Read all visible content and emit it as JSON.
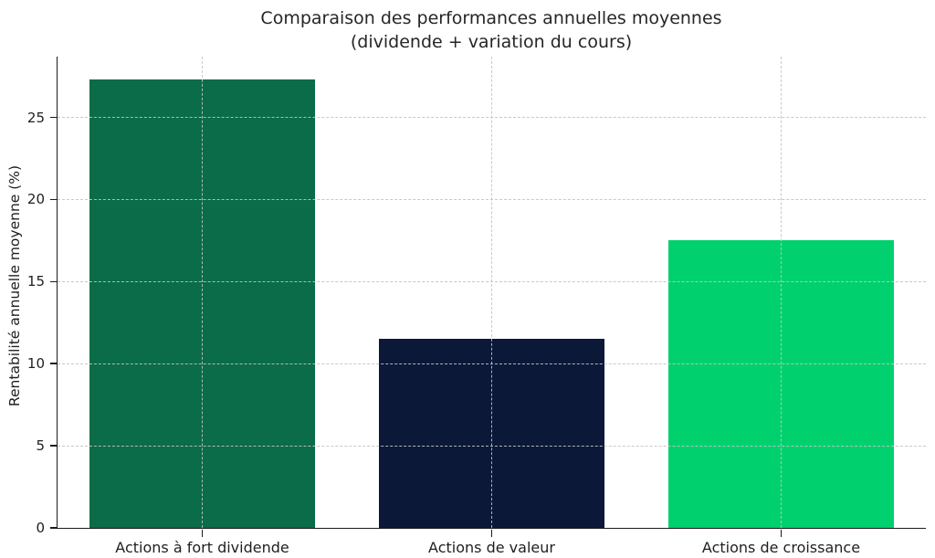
{
  "figure": {
    "title_line1": "Comparaison des performances annuelles moyennes",
    "title_line2": "(dividende + variation du cours)"
  },
  "chart_data": {
    "type": "bar",
    "title": "Comparaison des performances annuelles moyennes (dividende + variation du cours)",
    "categories": [
      "Actions à fort dividende",
      "Actions de valeur",
      "Actions de croissance"
    ],
    "values": [
      27.3,
      11.5,
      17.5
    ],
    "bar_colors": [
      "#0a6c48",
      "#0b1838",
      "#00d16e"
    ],
    "xlabel": "",
    "ylabel": "Rentabilité annuelle moyenne (%)",
    "ylim": [
      0,
      28.7
    ],
    "yticks": [
      0,
      5,
      10,
      15,
      20,
      25
    ],
    "grid": "dashed, horizontal and vertical, drawn above bars",
    "legend_position": "none",
    "bar_width_fraction": 0.78
  }
}
